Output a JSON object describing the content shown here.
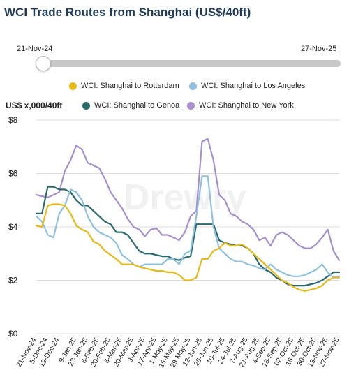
{
  "page": {
    "title": "WCI Trade Routes from Shanghai (US$/40ft)"
  },
  "date_slider": {
    "start_label": "21-Nov-24",
    "end_label": "27-Nov-25",
    "position": 0
  },
  "watermark": "Drewry",
  "chart_data": {
    "type": "line",
    "title": "WCI Trade Routes from Shanghai (US$/40ft)",
    "ylabel": "US$ x,000/40ft",
    "ylim": [
      0,
      8
    ],
    "yticks": [
      "$0",
      "$2",
      "$4",
      "$6",
      "$8"
    ],
    "grid": true,
    "legend_position": "top",
    "x": [
      "21-Nov-24",
      "28-Nov-24",
      "5-Dec-24",
      "12-Dec-24",
      "19-Dec-24",
      "26-Dec-24",
      "2-Jan-25",
      "9-Jan-25",
      "16-Jan-25",
      "23-Jan-25",
      "30-Jan-25",
      "6-Feb-25",
      "13-Feb-25",
      "20-Feb-25",
      "27-Feb-25",
      "6-Mar-25",
      "13-Mar-25",
      "20-Mar-25",
      "27-Mar-25",
      "3-Apr-25",
      "10-Apr-25",
      "17-Apr-25",
      "24-Apr-25",
      "1-May-25",
      "8-May-25",
      "15-May-25",
      "22-May-25",
      "29-May-25",
      "5-Jun-25",
      "12-Jun-25",
      "19-Jun-25",
      "26-Jun-25",
      "3-Jul-25",
      "10-Jul-25",
      "17-Jul-25",
      "24-Jul-25",
      "31-Jul-25",
      "7-Aug-25",
      "14-Aug-25",
      "21-Aug-25",
      "28-Aug-25",
      "4-Sep-25",
      "11-Sep-25",
      "18-Sep-25",
      "25-Sep-25",
      "02-Oct-25",
      "9-Oct-25",
      "16-Oct-25",
      "23-Oct-25",
      "30-Oct-25",
      "6-Nov-25",
      "13-Nov-25",
      "20-Nov-25",
      "27-Nov-25"
    ],
    "xtick_labels": [
      "21-Nov-24",
      "5-Dec-24",
      "19-Dec-24",
      "9-Jan-25",
      "23-Jan-25",
      "6-Feb-25",
      "20-Feb-25",
      "6-Mar-25",
      "20-Mar-25",
      "3-Apr-25",
      "17-Apr-25",
      "1-May-25",
      "15-May-25",
      "29-May-25",
      "12-Jun-25",
      "26-Jun-25",
      "10-Jul-25",
      "24-Jul-25",
      "7-Aug-25",
      "21-Aug-25",
      "4-Sep-25",
      "18-Sep-25",
      "02-Oct-25",
      "16-Oct-25",
      "30-Oct-25",
      "13-Nov-25",
      "27-Nov-25"
    ],
    "series": [
      {
        "name": "WCI: Shanghai to Rotterdam",
        "color": "#e8b917",
        "values": [
          4.05,
          4.0,
          4.8,
          4.85,
          4.85,
          4.8,
          4.5,
          4.05,
          3.9,
          3.8,
          3.45,
          3.35,
          3.1,
          2.95,
          2.8,
          2.6,
          2.6,
          2.6,
          2.5,
          2.45,
          2.4,
          2.35,
          2.35,
          2.3,
          2.3,
          2.2,
          2.0,
          2.0,
          2.1,
          2.8,
          2.8,
          3.1,
          3.2,
          3.4,
          3.3,
          3.3,
          3.35,
          3.2,
          3.0,
          2.8,
          2.6,
          2.4,
          2.2,
          2.0,
          1.9,
          1.75,
          1.65,
          1.6,
          1.65,
          1.7,
          1.8,
          2.0,
          2.1,
          2.1
        ]
      },
      {
        "name": "WCI: Shanghai to Los Angeles",
        "color": "#8ec0e0",
        "values": [
          4.4,
          4.2,
          3.7,
          3.6,
          4.5,
          4.8,
          5.4,
          5.3,
          5.0,
          4.4,
          4.0,
          3.8,
          3.7,
          3.6,
          3.4,
          2.95,
          2.8,
          2.6,
          2.5,
          2.6,
          2.6,
          2.6,
          2.6,
          2.8,
          2.8,
          2.6,
          3.0,
          3.1,
          4.4,
          5.9,
          5.9,
          4.0,
          3.2,
          3.0,
          2.8,
          2.7,
          2.7,
          2.6,
          2.55,
          2.45,
          2.4,
          2.6,
          2.4,
          2.3,
          2.2,
          2.15,
          2.15,
          2.2,
          2.3,
          2.4,
          2.6,
          2.3,
          2.1,
          2.15
        ]
      },
      {
        "name": "WCI: Shanghai to Genoa",
        "color": "#2a6a6e",
        "values": [
          4.5,
          4.5,
          5.5,
          5.5,
          5.4,
          5.4,
          5.3,
          5.0,
          4.8,
          4.8,
          4.6,
          4.4,
          4.2,
          4.1,
          3.8,
          3.8,
          3.7,
          3.4,
          3.1,
          3.0,
          3.0,
          2.95,
          2.9,
          2.9,
          2.8,
          2.75,
          2.85,
          2.9,
          4.1,
          4.1,
          4.1,
          4.1,
          3.5,
          3.4,
          3.35,
          3.3,
          3.3,
          3.2,
          3.0,
          2.6,
          2.4,
          2.3,
          2.1,
          2.0,
          1.85,
          1.8,
          1.8,
          1.8,
          1.85,
          1.9,
          2.0,
          2.15,
          2.3,
          2.3
        ]
      },
      {
        "name": "WCI: Shanghai to New York",
        "color": "#a68fce",
        "values": [
          5.2,
          5.15,
          5.1,
          5.2,
          5.3,
          6.1,
          6.5,
          7.05,
          6.9,
          6.4,
          6.3,
          6.2,
          5.8,
          5.3,
          5.0,
          4.7,
          4.3,
          4.0,
          3.9,
          3.65,
          3.9,
          3.95,
          3.7,
          3.7,
          3.6,
          3.5,
          3.8,
          4.4,
          4.6,
          7.2,
          7.3,
          6.5,
          5.2,
          5.0,
          4.5,
          4.4,
          4.2,
          4.1,
          3.9,
          3.5,
          3.6,
          3.3,
          3.7,
          3.8,
          3.7,
          3.5,
          3.3,
          3.2,
          3.2,
          3.35,
          3.6,
          3.9,
          3.1,
          2.75
        ]
      }
    ]
  }
}
